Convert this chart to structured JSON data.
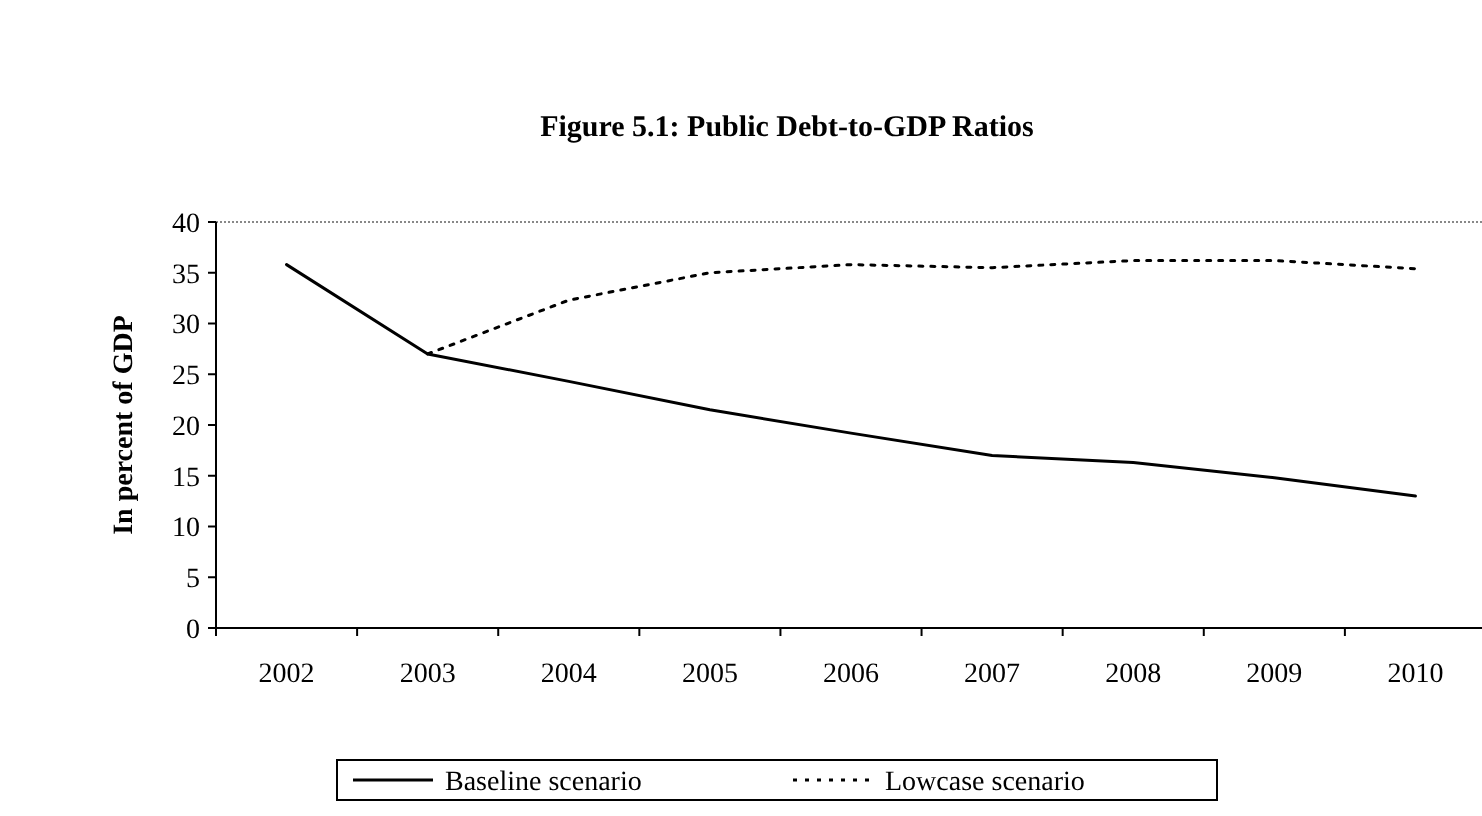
{
  "chart_data": {
    "type": "line",
    "title": "Figure 5.1: Public Debt-to-GDP Ratios",
    "ylabel": "In percent of GDP",
    "categories": [
      "2002",
      "2003",
      "2004",
      "2005",
      "2006",
      "2007",
      "2008",
      "2009",
      "2010"
    ],
    "series": [
      {
        "name": "Baseline scenario",
        "color": "#000000",
        "line_style": "solid",
        "values": [
          35.8,
          27,
          24.3,
          21.5,
          19.2,
          17,
          16.3,
          14.8,
          13
        ]
      },
      {
        "name": "Lowcase scenario",
        "color": "#000000",
        "line_style": "dotted",
        "values": [
          null,
          27,
          32.3,
          35,
          35.8,
          35.5,
          36.2,
          36.2,
          35.4
        ]
      }
    ],
    "ylim": [
      0,
      40
    ],
    "yticks": [
      0,
      5,
      10,
      15,
      20,
      25,
      30,
      35,
      40
    ],
    "grid": false,
    "legend": "bottom",
    "marker": "none"
  }
}
